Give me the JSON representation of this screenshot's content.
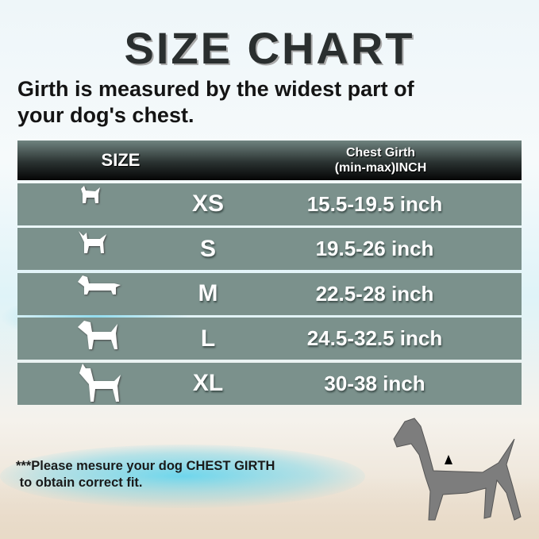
{
  "title": "SIZE CHART",
  "subtitle_line1": "Girth is measured by the widest part of",
  "subtitle_line2": "your dog's chest.",
  "table": {
    "headers": {
      "size": "SIZE",
      "girth_line1": "Chest Girth",
      "girth_line2": "(min-max)INCH"
    },
    "rows": [
      {
        "icon": "small-dog-icon",
        "size": "XS",
        "girth": "15.5-19.5 inch"
      },
      {
        "icon": "chihuahua-icon",
        "size": "S",
        "girth": "19.5-26 inch"
      },
      {
        "icon": "dachshund-icon",
        "size": "M",
        "girth": "22.5-28 inch"
      },
      {
        "icon": "medium-dog-icon",
        "size": "L",
        "girth": "24.5-32.5 inch"
      },
      {
        "icon": "great-dane-icon",
        "size": "XL",
        "girth": "30-38 inch"
      }
    ]
  },
  "note_line1": "***Please mesure your dog CHEST GIRTH",
  "note_line2": " to obtain correct fit.",
  "colors": {
    "row": "#7b918c",
    "header": "#1a1f1f",
    "title": "#2a2f2f"
  }
}
